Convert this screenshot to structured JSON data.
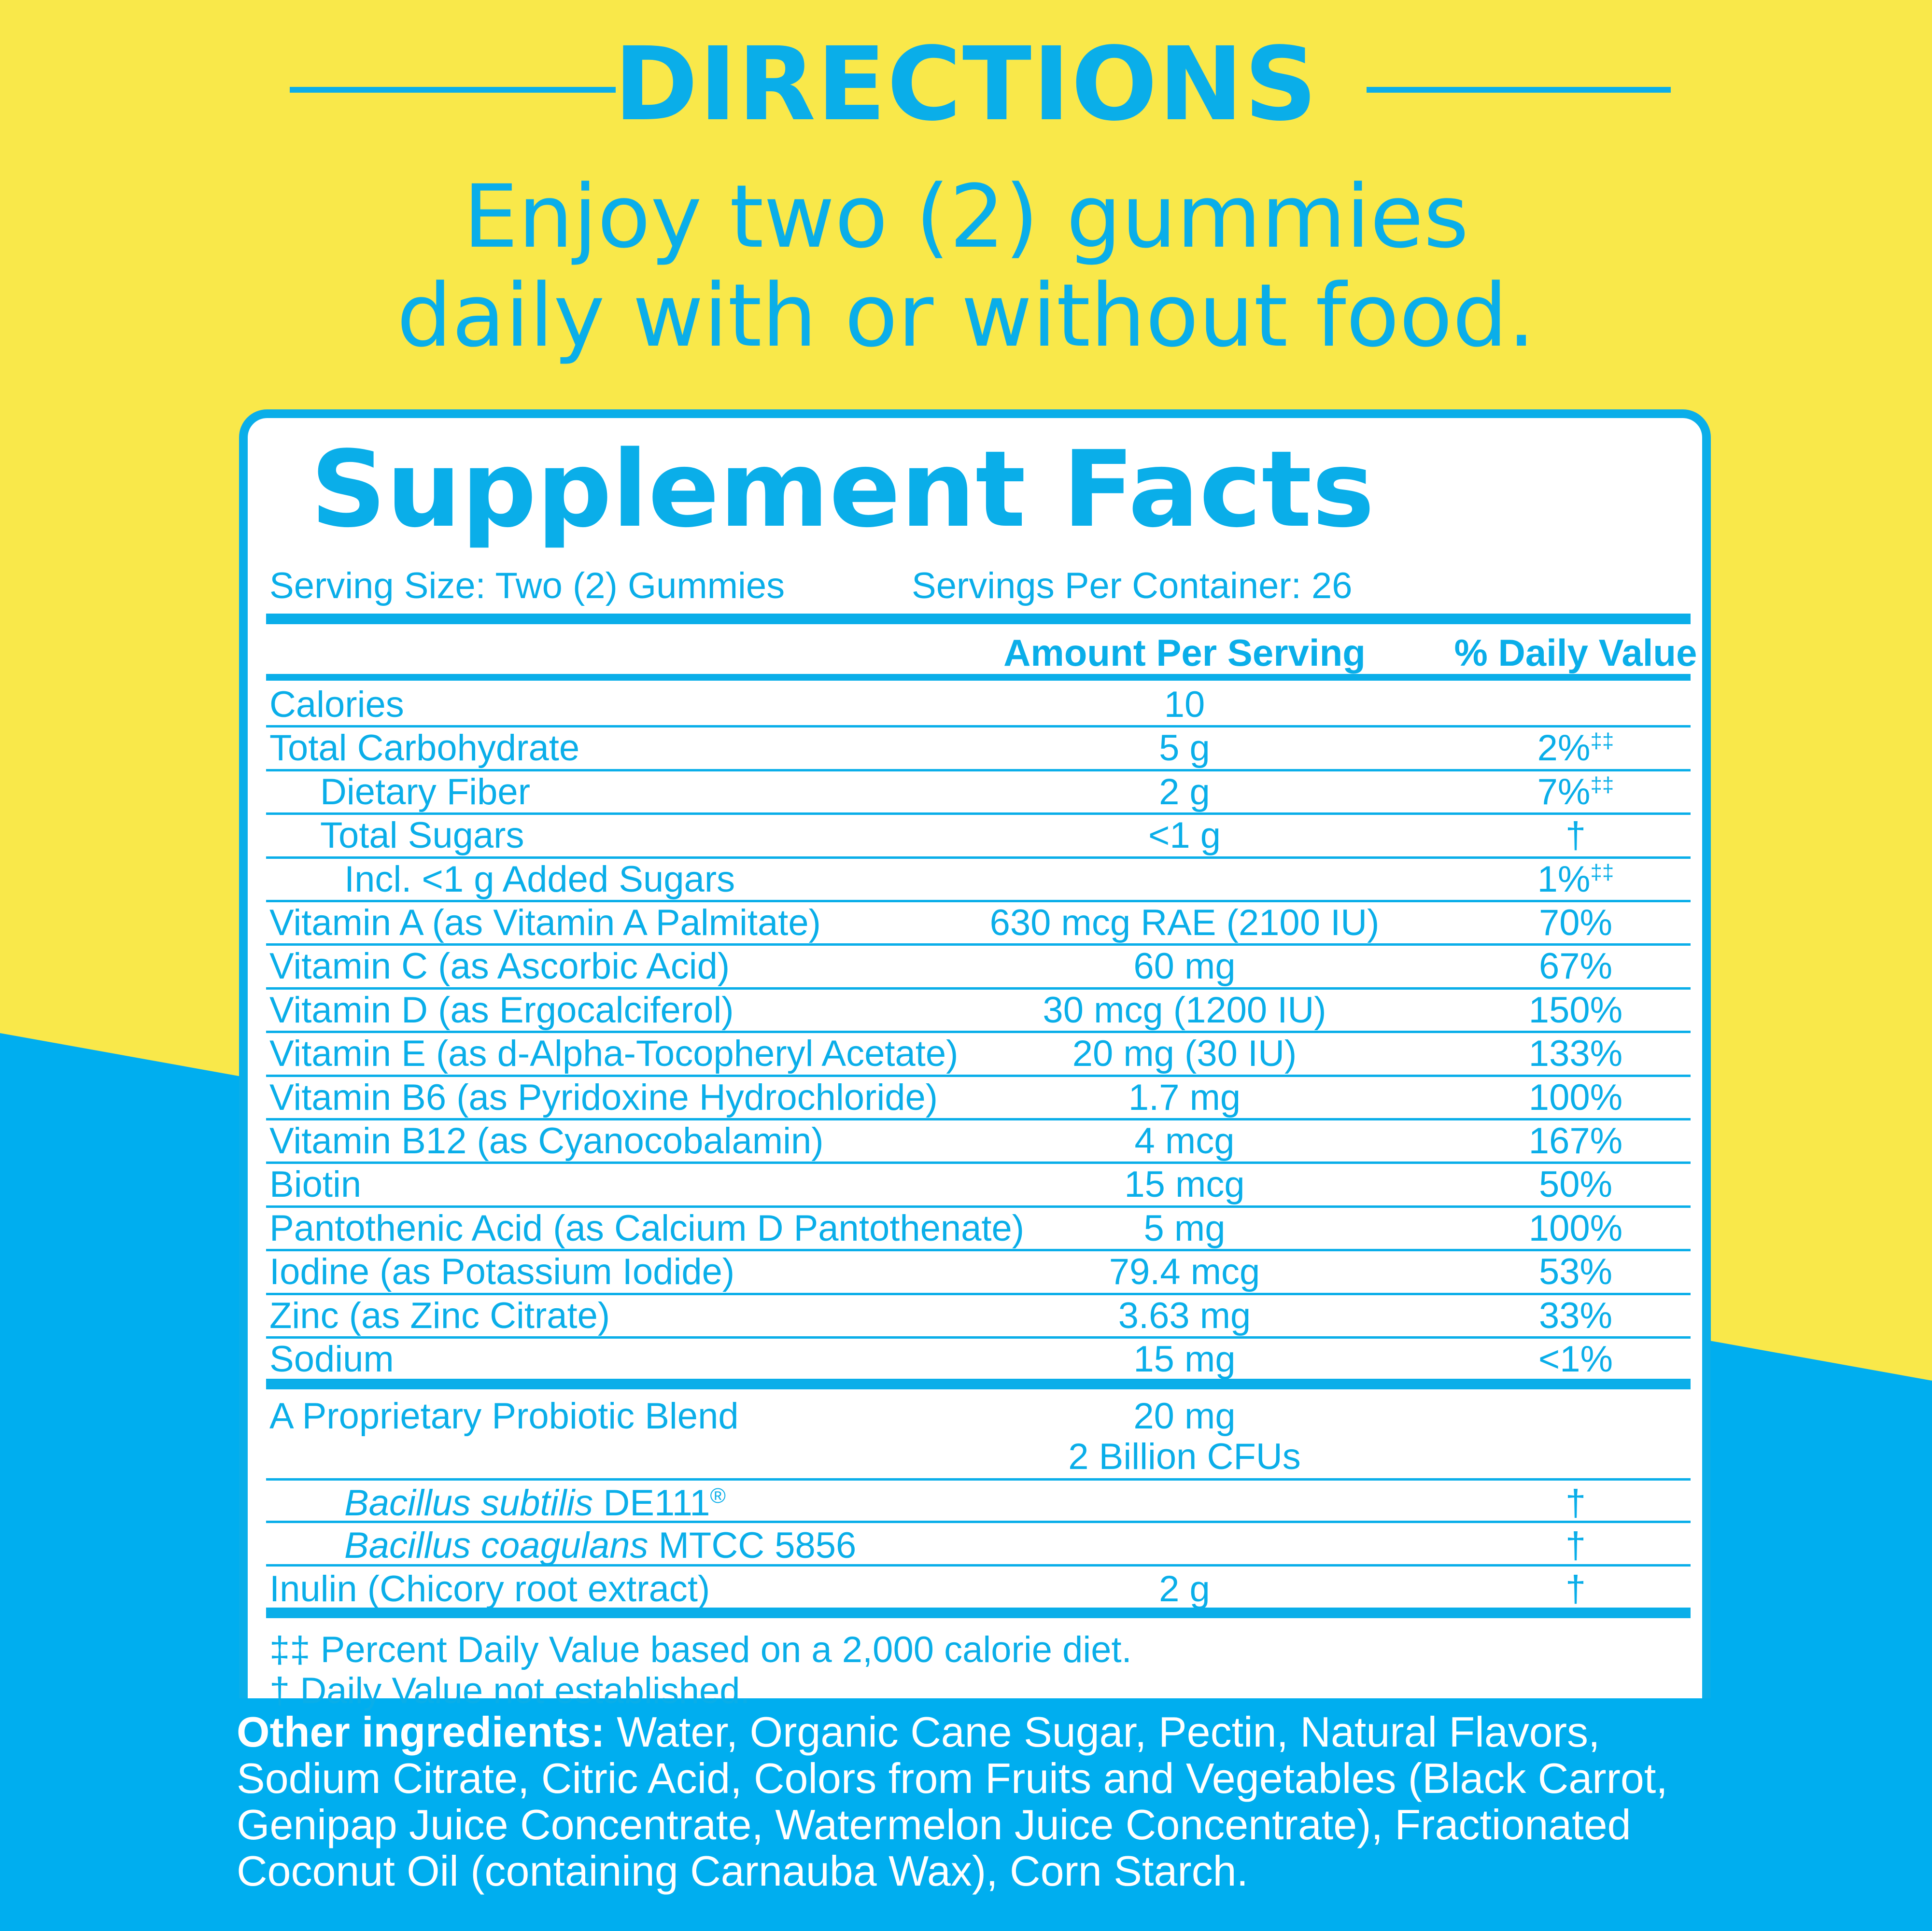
{
  "colors": {
    "blue": "#0aaee9",
    "yellow": "#f9e84a",
    "white": "#ffffff"
  },
  "directions": {
    "title": "DIRECTIONS",
    "line1": "Enjoy two (2) gummies",
    "line2": "daily with or without food."
  },
  "facts": {
    "title": "Supplement Facts",
    "serving_size": "Serving Size: Two (2) Gummies",
    "servings_per_container": "Servings Per Container: 26",
    "col_amount": "Amount Per Serving",
    "col_dv": "% Daily Value",
    "rows": [
      {
        "name": "Calories",
        "amount": "10",
        "dv": ""
      },
      {
        "name": "Total Carbohydrate",
        "amount": "5 g",
        "dv": "2%",
        "dv_mark": "‡‡"
      },
      {
        "name": "Dietary Fiber",
        "amount": "2 g",
        "dv": "7%",
        "dv_mark": "‡‡"
      },
      {
        "name": "Total  Sugars",
        "amount": "<1 g",
        "dv": "†"
      },
      {
        "name": "Incl. <1 g Added Sugars",
        "amount": "",
        "dv": "1%",
        "dv_mark": "‡‡"
      },
      {
        "name": "Vitamin A (as Vitamin A Palmitate)",
        "amount": "630 mcg RAE (2100 IU)",
        "dv": "70%"
      },
      {
        "name": "Vitamin C (as Ascorbic Acid)",
        "amount": "60 mg",
        "dv": "67%"
      },
      {
        "name": "Vitamin D (as Ergocalciferol)",
        "amount": "30 mcg (1200 IU)",
        "dv": "150%"
      },
      {
        "name": "Vitamin E (as d-Alpha-Tocopheryl Acetate)",
        "amount": "20 mg (30 IU)",
        "dv": "133%"
      },
      {
        "name": "Vitamin B6 (as Pyridoxine Hydrochloride)",
        "amount": "1.7 mg",
        "dv": "100%"
      },
      {
        "name": "Vitamin B12 (as Cyanocobalamin)",
        "amount": "4 mcg",
        "dv": "167%"
      },
      {
        "name": "Biotin",
        "amount": "15 mcg",
        "dv": "50%"
      },
      {
        "name": "Pantothenic Acid (as Calcium D Pantothenate)",
        "amount": "5 mg",
        "dv": "100%"
      },
      {
        "name": "Iodine (as Potassium Iodide)",
        "amount": "79.4 mcg",
        "dv": "53%"
      },
      {
        "name": "Zinc (as Zinc Citrate)",
        "amount": "3.63 mg",
        "dv": "33%"
      },
      {
        "name": "Sodium",
        "amount": "15 mg",
        "dv": "<1%"
      }
    ],
    "blend": {
      "name": "A Proprietary Probiotic Blend",
      "amount1": "20 mg",
      "amount2": "2 Billion CFUs",
      "strain1_italic": "Bacillus subtilis",
      "strain1_rest": " DE111",
      "strain1_mark": "®",
      "strain1_dv": "†",
      "strain2_italic": "Bacillus coagulans",
      "strain2_rest": " MTCC 5856",
      "strain2_dv": "†"
    },
    "inulin": {
      "name": "Inulin (Chicory root extract)",
      "amount": "2 g",
      "dv": "†"
    },
    "foot1": "‡‡ Percent Daily Value based on a 2,000 calorie diet.",
    "foot2": "† Daily Value not established."
  },
  "other": {
    "label": "Other ingredients:",
    "text": " Water, Organic Cane Sugar, Pectin, Natural Flavors, Sodium Citrate, Citric Acid, Colors from Fruits and Vegetables (Black Carrot, Genipap Juice Concentrate, Watermelon Juice Concentrate), Fractionated Coconut Oil (containing Carnauba Wax), Corn Starch."
  }
}
